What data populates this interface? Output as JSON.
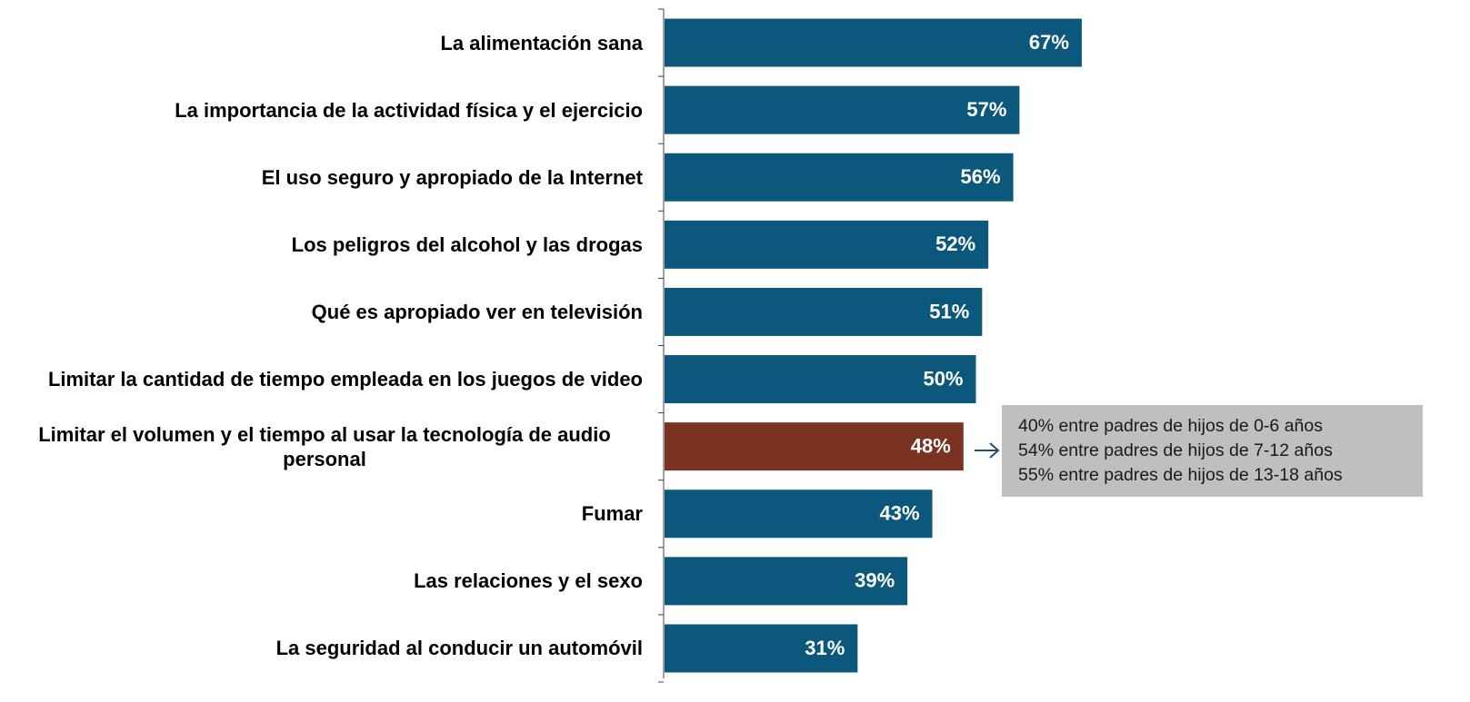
{
  "chart_data": {
    "type": "bar",
    "orientation": "horizontal",
    "categories": [
      "La alimentación sana",
      "La importancia de la actividad física y el ejercicio",
      "El uso seguro y apropiado de la Internet",
      "Los peligros del alcohol y las drogas",
      "Qué es apropiado ver en televisión",
      "Limitar la cantidad de tiempo empleada en los juegos de video",
      "Limitar el volumen y el tiempo al usar la tecnología de audio personal",
      "Fumar",
      "Las relaciones y el sexo",
      "La seguridad al conducir un automóvil"
    ],
    "values": [
      67,
      57,
      56,
      52,
      51,
      50,
      48,
      43,
      39,
      31
    ],
    "value_labels": [
      "67%",
      "57%",
      "56%",
      "52%",
      "51%",
      "50%",
      "48%",
      "43%",
      "39%",
      "31%"
    ],
    "colors": [
      "#0b587c",
      "#0b587c",
      "#0b587c",
      "#0b587c",
      "#0b587c",
      "#0b587c",
      "#7b3321",
      "#0b587c",
      "#0b587c",
      "#0b587c"
    ],
    "annotation": [
      "40% entre padres de hijos de 0-6 años",
      "54% entre padres de hijos de 7-12 años",
      "55% entre padres de hijos de 13-18 años"
    ]
  }
}
